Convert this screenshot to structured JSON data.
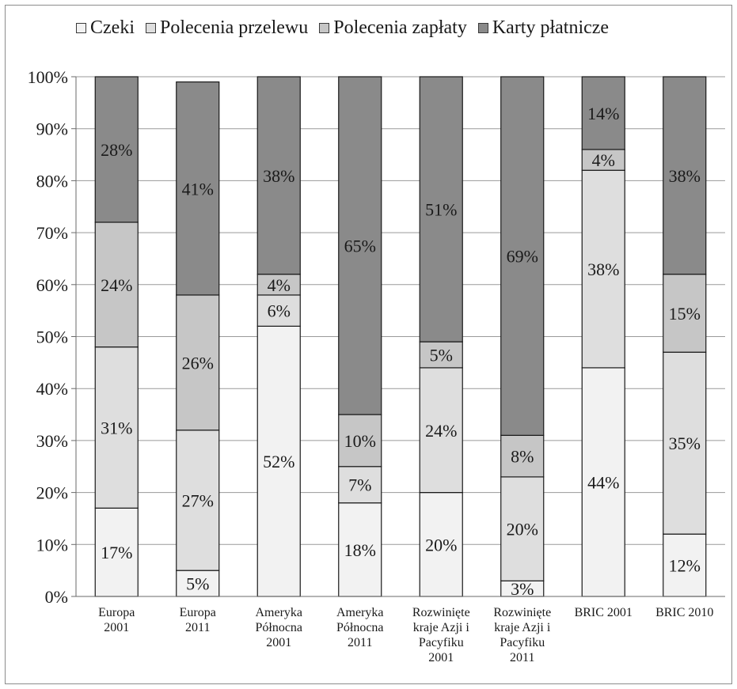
{
  "chart_data": {
    "type": "bar",
    "stacked": true,
    "normalized": true,
    "categories": [
      [
        "Europa",
        "2001"
      ],
      [
        "Europa",
        "2011"
      ],
      [
        "Ameryka",
        "Północna",
        "2001"
      ],
      [
        "Ameryka",
        "Północna",
        "2011"
      ],
      [
        "Rozwinięte",
        "kraje Azji i",
        "Pacyfiku",
        "2001"
      ],
      [
        "Rozwinięte",
        "kraje Azji i",
        "Pacyfiku",
        "2011"
      ],
      [
        "BRIC 2001"
      ],
      [
        "BRIC 2010"
      ]
    ],
    "series": [
      {
        "name": "Czeki",
        "values": [
          17,
          5,
          52,
          18,
          20,
          3,
          44,
          12
        ],
        "labels": [
          "17%",
          "5%",
          "52%",
          "18%",
          "20%",
          "3%",
          "44%",
          "12%"
        ]
      },
      {
        "name": "Polecenia przelewu",
        "values": [
          31,
          27,
          6,
          7,
          24,
          20,
          38,
          35
        ],
        "labels": [
          "31%",
          "27%",
          "6%",
          "7%",
          "24%",
          "20%",
          "38%",
          "35%"
        ]
      },
      {
        "name": "Polecenia zapłaty",
        "values": [
          24,
          26,
          4,
          10,
          5,
          8,
          4,
          15
        ],
        "labels": [
          "24%",
          "26%",
          "4%",
          "10%",
          "5%",
          "8%",
          "4%",
          "15%"
        ]
      },
      {
        "name": "Karty płatnicze",
        "values": [
          28,
          41,
          38,
          65,
          51,
          69,
          14,
          38
        ],
        "labels": [
          "28%",
          "41%",
          "38%",
          "65%",
          "51%",
          "69%",
          "14%",
          "38%"
        ]
      }
    ],
    "colors": [
      "#f2f2f2",
      "#dedede",
      "#c6c6c6",
      "#8a8a8a"
    ],
    "yticks": [
      "0%",
      "10%",
      "20%",
      "30%",
      "40%",
      "50%",
      "60%",
      "70%",
      "80%",
      "90%",
      "100%"
    ],
    "ylim": [
      0,
      100
    ],
    "grid": true,
    "legend_position": "top",
    "title": "",
    "xlabel": "",
    "ylabel": ""
  }
}
